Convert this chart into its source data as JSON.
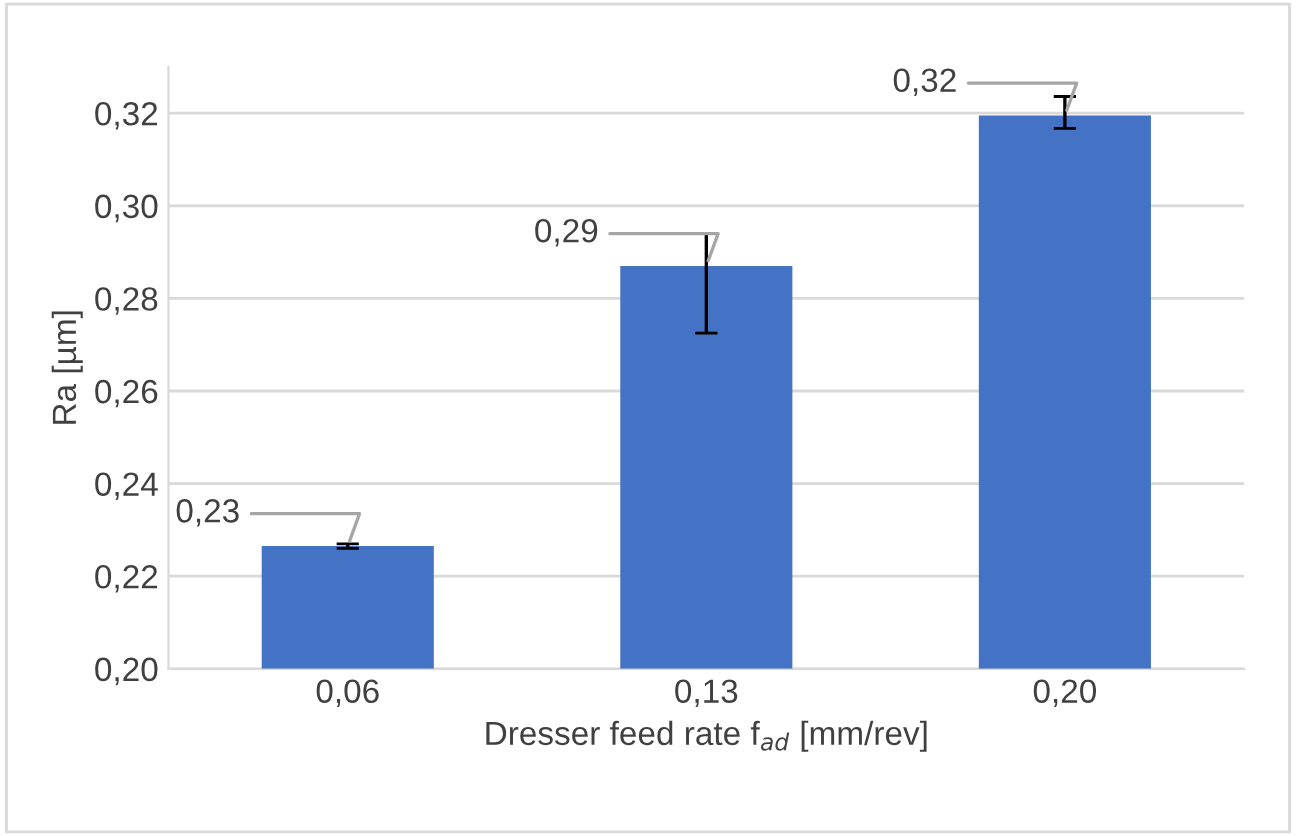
{
  "chart_data": {
    "type": "bar",
    "xlabel": "Dresser feed rate f$_{ad}$ [mm/rev]",
    "ylabel": "Ra [µm]",
    "categories": [
      "0,06",
      "0,13",
      "0,20"
    ],
    "values": [
      0.2265,
      0.287,
      0.3195
    ],
    "errors": [
      [
        0.226,
        0.227
      ],
      [
        0.2725,
        0.294
      ],
      [
        0.3167,
        0.3236
      ]
    ],
    "value_labels": [
      "0,23",
      "0,29",
      "0,32"
    ],
    "color": "#4472c4",
    "ylim": [
      0.2,
      0.33
    ],
    "yticks": [
      {
        "value": 0.2,
        "label": "0,20"
      },
      {
        "value": 0.22,
        "label": "0,22"
      },
      {
        "value": 0.24,
        "label": "0,24"
      },
      {
        "value": 0.26,
        "label": "0,26"
      },
      {
        "value": 0.28,
        "label": "0,28"
      },
      {
        "value": 0.3,
        "label": "0,30"
      },
      {
        "value": 0.32,
        "label": "0,32"
      }
    ],
    "grid": "y"
  }
}
